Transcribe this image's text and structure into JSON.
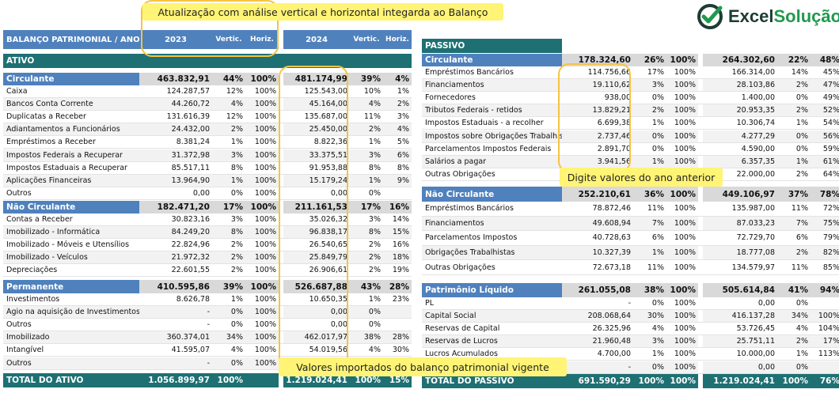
{
  "colors": {
    "header_blue": "#4f81bd",
    "teal": "#1e7073",
    "section_gray": "#d9d9d9",
    "highlight": "#fff475",
    "outline": "#f6c343",
    "logo_green": "#1f9a4c",
    "logo_dark": "#1d3c33"
  },
  "logo": {
    "part1": "Excel",
    "part2": "Solução",
    "icon": "check-circle-icon"
  },
  "callouts": {
    "top": "Atualização com análise vertical e horizontal integarda ao Balanço",
    "right": "Digite valores do ano anterior",
    "bottom": "Valores importados do balanço patrimonial vigente"
  },
  "header": {
    "title": "BALANÇO PATRIMONIAL / ANO",
    "y1": "2023",
    "vert": "Vertic.",
    "horiz": "Horiz.",
    "y2": "2024"
  },
  "ativo": {
    "label": "ATIVO",
    "sections": [
      {
        "name": "Circulante",
        "v1": "463.832,91",
        "vp1": "44%",
        "hp1": "100%",
        "v2": "481.174,99",
        "vp2": "39%",
        "hp2": "4%",
        "rows": [
          {
            "l": "Caixa",
            "v1": "124.287,57",
            "vp1": "12%",
            "hp1": "100%",
            "v2": "125.543,00",
            "vp2": "10%",
            "hp2": "1%"
          },
          {
            "l": "Bancos Conta Corrente",
            "v1": "44.260,72",
            "vp1": "4%",
            "hp1": "100%",
            "v2": "45.164,00",
            "vp2": "4%",
            "hp2": "2%"
          },
          {
            "l": "Duplicatas a Receber",
            "v1": "131.616,39",
            "vp1": "12%",
            "hp1": "100%",
            "v2": "135.687,00",
            "vp2": "11%",
            "hp2": "3%"
          },
          {
            "l": "Adiantamentos a Funcionários",
            "v1": "24.432,00",
            "vp1": "2%",
            "hp1": "100%",
            "v2": "25.450,00",
            "vp2": "2%",
            "hp2": "4%"
          },
          {
            "l": "Empréstimos a Receber",
            "v1": "8.381,24",
            "vp1": "1%",
            "hp1": "100%",
            "v2": "8.822,36",
            "vp2": "1%",
            "hp2": "5%"
          },
          {
            "l": "Impostos Federais a Recuperar",
            "v1": "31.372,98",
            "vp1": "3%",
            "hp1": "100%",
            "v2": "33.375,51",
            "vp2": "3%",
            "hp2": "6%"
          },
          {
            "l": "Impostos Estaduais a Recuperar",
            "v1": "85.517,11",
            "vp1": "8%",
            "hp1": "100%",
            "v2": "91.953,88",
            "vp2": "8%",
            "hp2": "8%"
          },
          {
            "l": "Aplicações Financeiras",
            "v1": "13.964,90",
            "vp1": "1%",
            "hp1": "100%",
            "v2": "15.179,24",
            "vp2": "1%",
            "hp2": "9%"
          },
          {
            "l": "Outros",
            "v1": "0,00",
            "vp1": "0%",
            "hp1": "100%",
            "v2": "0,00",
            "vp2": "0%",
            "hp2": ""
          }
        ]
      },
      {
        "name": "Não Circulante",
        "v1": "182.471,20",
        "vp1": "17%",
        "hp1": "100%",
        "v2": "211.161,53",
        "vp2": "17%",
        "hp2": "16%",
        "rows": [
          {
            "l": "Contas a Receber",
            "v1": "30.823,16",
            "vp1": "3%",
            "hp1": "100%",
            "v2": "35.026,32",
            "vp2": "3%",
            "hp2": "14%"
          },
          {
            "l": "Imobilizado - Informática",
            "v1": "84.249,20",
            "vp1": "8%",
            "hp1": "100%",
            "v2": "96.838,17",
            "vp2": "8%",
            "hp2": "15%"
          },
          {
            "l": "Imobilizado - Móveis e Utensílios",
            "v1": "22.824,96",
            "vp1": "2%",
            "hp1": "100%",
            "v2": "26.540,65",
            "vp2": "2%",
            "hp2": "16%"
          },
          {
            "l": "Imobilizado - Veículos",
            "v1": "21.972,32",
            "vp1": "2%",
            "hp1": "100%",
            "v2": "25.849,79",
            "vp2": "2%",
            "hp2": "18%"
          },
          {
            "l": "Depreciações",
            "v1": "22.601,55",
            "vp1": "2%",
            "hp1": "100%",
            "v2": "26.906,61",
            "vp2": "2%",
            "hp2": "19%"
          }
        ]
      },
      {
        "name": "Permanente",
        "v1": "410.595,86",
        "vp1": "39%",
        "hp1": "100%",
        "v2": "526.687,88",
        "vp2": "43%",
        "hp2": "28%",
        "rows": [
          {
            "l": "Investimentos",
            "v1": "8.626,78",
            "vp1": "1%",
            "hp1": "100%",
            "v2": "10.650,35",
            "vp2": "1%",
            "hp2": "23%"
          },
          {
            "l": "Ágio na aquisição de Investimentos",
            "v1": "-",
            "vp1": "0%",
            "hp1": "100%",
            "v2": "0,00",
            "vp2": "0%",
            "hp2": ""
          },
          {
            "l": "Outros",
            "v1": "-",
            "vp1": "0%",
            "hp1": "100%",
            "v2": "0,00",
            "vp2": "0%",
            "hp2": ""
          },
          {
            "l": "Imobilizado",
            "v1": "360.374,01",
            "vp1": "34%",
            "hp1": "100%",
            "v2": "462.017,97",
            "vp2": "38%",
            "hp2": "28%"
          },
          {
            "l": "Intangível",
            "v1": "41.595,07",
            "vp1": "4%",
            "hp1": "100%",
            "v2": "54.019,56",
            "vp2": "4%",
            "hp2": "30%"
          },
          {
            "l": "Outros",
            "v1": "-",
            "vp1": "0%",
            "hp1": "100%",
            "v2": "0,00",
            "vp2": "0%",
            "hp2": ""
          }
        ]
      }
    ],
    "total": {
      "l": "TOTAL DO ATIVO",
      "v1": "1.056.899,97",
      "vp1": "100%",
      "hp1": "",
      "v2": "1.219.024,41",
      "vp2": "100%",
      "hp2": "15%"
    }
  },
  "passivo": {
    "label": "PASSIVO",
    "sections": [
      {
        "name": "Circulante",
        "v1": "178.324,60",
        "vp1": "26%",
        "hp1": "100%",
        "v2": "264.302,60",
        "vp2": "22%",
        "hp2": "48%",
        "rows": [
          {
            "l": "Empréstimos Bancários",
            "v1": "114.756,66",
            "vp1": "17%",
            "hp1": "100%",
            "v2": "166.314,00",
            "vp2": "14%",
            "hp2": "45%"
          },
          {
            "l": "Financiamentos",
            "v1": "19.110,62",
            "vp1": "3%",
            "hp1": "100%",
            "v2": "28.103,86",
            "vp2": "2%",
            "hp2": "47%"
          },
          {
            "l": "Fornecedores",
            "v1": "938,00",
            "vp1": "0%",
            "hp1": "100%",
            "v2": "1.400,00",
            "vp2": "0%",
            "hp2": "49%"
          },
          {
            "l": "Tributos Federais - retidos",
            "v1": "13.829,21",
            "vp1": "2%",
            "hp1": "100%",
            "v2": "20.953,35",
            "vp2": "2%",
            "hp2": "52%"
          },
          {
            "l": "Impostos Estaduais - a recolher",
            "v1": "6.699,38",
            "vp1": "1%",
            "hp1": "100%",
            "v2": "10.306,74",
            "vp2": "1%",
            "hp2": "54%"
          },
          {
            "l": "Impostos sobre Obrigações Trabalhist",
            "v1": "2.737,46",
            "vp1": "0%",
            "hp1": "100%",
            "v2": "4.277,29",
            "vp2": "0%",
            "hp2": "56%"
          },
          {
            "l": "Parcelamentos Impostos Federais",
            "v1": "2.891,70",
            "vp1": "0%",
            "hp1": "100%",
            "v2": "4.590,00",
            "vp2": "0%",
            "hp2": "59%"
          },
          {
            "l": "Salários a pagar",
            "v1": "3.941,56",
            "vp1": "1%",
            "hp1": "100%",
            "v2": "6.357,35",
            "vp2": "1%",
            "hp2": "61%"
          },
          {
            "l": "Outras Obrigações",
            "v1": "",
            "vp1": "",
            "hp1": "",
            "v2": "22.000,00",
            "vp2": "2%",
            "hp2": "64%"
          }
        ]
      },
      {
        "name": "Não Circulante",
        "v1": "252.210,61",
        "vp1": "36%",
        "hp1": "100%",
        "v2": "449.106,97",
        "vp2": "37%",
        "hp2": "78%",
        "rows": [
          {
            "l": "Empréstimos Bancários",
            "v1": "78.872,46",
            "vp1": "11%",
            "hp1": "100%",
            "v2": "135.987,00",
            "vp2": "11%",
            "hp2": "72%"
          },
          {
            "l": "Financiamentos",
            "v1": "49.608,94",
            "vp1": "7%",
            "hp1": "100%",
            "v2": "87.033,23",
            "vp2": "7%",
            "hp2": "75%"
          },
          {
            "l": "Parcelamentos Impostos",
            "v1": "40.728,63",
            "vp1": "6%",
            "hp1": "100%",
            "v2": "72.729,70",
            "vp2": "6%",
            "hp2": "79%"
          },
          {
            "l": "Obrigações Trabalhistas",
            "v1": "10.327,39",
            "vp1": "1%",
            "hp1": "100%",
            "v2": "18.777,08",
            "vp2": "2%",
            "hp2": "82%"
          },
          {
            "l": "Outras Obrigações",
            "v1": "72.673,18",
            "vp1": "11%",
            "hp1": "100%",
            "v2": "134.579,97",
            "vp2": "11%",
            "hp2": "85%"
          }
        ]
      },
      {
        "name": "Patrimônio Líquido",
        "v1": "261.055,08",
        "vp1": "38%",
        "hp1": "100%",
        "v2": "505.614,84",
        "vp2": "41%",
        "hp2": "94%",
        "rows": [
          {
            "l": "PL",
            "v1": "-",
            "vp1": "0%",
            "hp1": "100%",
            "v2": "0,00",
            "vp2": "0%",
            "hp2": ""
          },
          {
            "l": "Capital Social",
            "v1": "208.068,64",
            "vp1": "30%",
            "hp1": "100%",
            "v2": "416.137,28",
            "vp2": "34%",
            "hp2": "100%"
          },
          {
            "l": "Reservas de Capital",
            "v1": "26.325,96",
            "vp1": "4%",
            "hp1": "100%",
            "v2": "53.726,45",
            "vp2": "4%",
            "hp2": "104%"
          },
          {
            "l": "Reservas de Lucros",
            "v1": "21.960,48",
            "vp1": "3%",
            "hp1": "100%",
            "v2": "25.751,11",
            "vp2": "2%",
            "hp2": "17%"
          },
          {
            "l": "Lucros Acumulados",
            "v1": "4.700,00",
            "vp1": "1%",
            "hp1": "100%",
            "v2": "10.000,00",
            "vp2": "1%",
            "hp2": "113%"
          },
          {
            "l": "",
            "v1": "-",
            "vp1": "0%",
            "hp1": "100%",
            "v2": "0,00",
            "vp2": "0%",
            "hp2": ""
          }
        ]
      }
    ],
    "total": {
      "l": "TOTAL DO PASSIVO",
      "v1": "691.590,29",
      "vp1": "100%",
      "hp1": "100%",
      "v2": "1.219.024,41",
      "vp2": "100%",
      "hp2": "76%"
    }
  }
}
